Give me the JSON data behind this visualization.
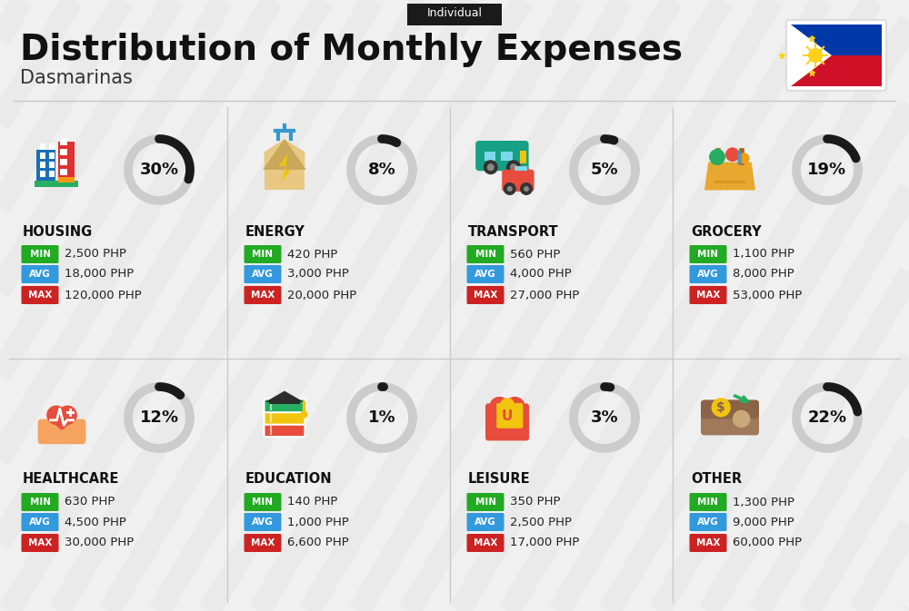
{
  "title": "Distribution of Monthly Expenses",
  "subtitle": "Individual",
  "city": "Dasmarinas",
  "bg_color": "#f0f0f0",
  "categories": [
    {
      "name": "HOUSING",
      "pct": 30,
      "min": "2,500 PHP",
      "avg": "18,000 PHP",
      "max": "120,000 PHP",
      "icon": "housing",
      "row": 0,
      "col": 0
    },
    {
      "name": "ENERGY",
      "pct": 8,
      "min": "420 PHP",
      "avg": "3,000 PHP",
      "max": "20,000 PHP",
      "icon": "energy",
      "row": 0,
      "col": 1
    },
    {
      "name": "TRANSPORT",
      "pct": 5,
      "min": "560 PHP",
      "avg": "4,000 PHP",
      "max": "27,000 PHP",
      "icon": "transport",
      "row": 0,
      "col": 2
    },
    {
      "name": "GROCERY",
      "pct": 19,
      "min": "1,100 PHP",
      "avg": "8,000 PHP",
      "max": "53,000 PHP",
      "icon": "grocery",
      "row": 0,
      "col": 3
    },
    {
      "name": "HEALTHCARE",
      "pct": 12,
      "min": "630 PHP",
      "avg": "4,500 PHP",
      "max": "30,000 PHP",
      "icon": "healthcare",
      "row": 1,
      "col": 0
    },
    {
      "name": "EDUCATION",
      "pct": 1,
      "min": "140 PHP",
      "avg": "1,000 PHP",
      "max": "6,600 PHP",
      "icon": "education",
      "row": 1,
      "col": 1
    },
    {
      "name": "LEISURE",
      "pct": 3,
      "min": "350 PHP",
      "avg": "2,500 PHP",
      "max": "17,000 PHP",
      "icon": "leisure",
      "row": 1,
      "col": 2
    },
    {
      "name": "OTHER",
      "pct": 22,
      "min": "1,300 PHP",
      "avg": "9,000 PHP",
      "max": "60,000 PHP",
      "icon": "other",
      "row": 1,
      "col": 3
    }
  ],
  "color_min": "#22aa22",
  "color_avg": "#3399dd",
  "color_max": "#cc2222",
  "arc_dark": "#1a1a1a",
  "arc_gray": "#cccccc",
  "divider_color": "#c8c8c8",
  "stripe_color": "#e8e8e8",
  "header_bg": "#1a1a1a",
  "flag_blue": "#0038A8",
  "flag_red": "#CE1126",
  "flag_yellow": "#FCD116"
}
